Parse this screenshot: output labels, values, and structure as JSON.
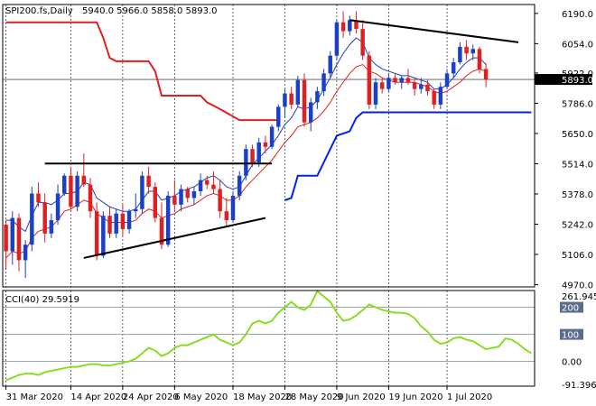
{
  "chart_data": {
    "type": "candlestick",
    "header": {
      "symbol": "SPI200.fs,Daily",
      "ohlc": "5940.0 5966.0 5858.0 5893.0"
    },
    "price_axis": {
      "ticks": [
        6190.0,
        6054.0,
        5922.0,
        5786.0,
        5650.0,
        5514.0,
        5378.0,
        5242.0,
        5106.0,
        4970.0
      ],
      "tick_labels": [
        "6190.0",
        "6054.0",
        "5922.0",
        "5786.0",
        "5650.0",
        "5514.0",
        "5378.0",
        "5242.0",
        "5106.0",
        "4970.0"
      ],
      "range": [
        4960,
        6230
      ],
      "last_price": 5893.0,
      "last_price_label": "5893.0"
    },
    "date_labels": [
      "31 Mar 2020",
      "14 Apr 2020",
      "24 Apr 2020",
      "6 May 2020",
      "18 May 2020",
      "28 May 2020",
      "9 Jun 2020",
      "19 Jun 2020",
      "1 Jul 2020"
    ],
    "colors": {
      "bull": "#1a3fc8",
      "bear": "#e02020",
      "ma_fast": "#e02020",
      "ma_slow": "#1a3fc8",
      "stop_high": "#e02020",
      "stop_low": "#0022ee",
      "cci": "#88dd22",
      "grid": "#000000"
    },
    "candles": [
      [
        5240,
        5260,
        5040,
        5120
      ],
      [
        5120,
        5300,
        5060,
        5270
      ],
      [
        5270,
        5290,
        5030,
        5080
      ],
      [
        5080,
        5170,
        5000,
        5150
      ],
      [
        5150,
        5410,
        5120,
        5380
      ],
      [
        5380,
        5430,
        5320,
        5340
      ],
      [
        5340,
        5380,
        5160,
        5200
      ],
      [
        5200,
        5290,
        5180,
        5260
      ],
      [
        5260,
        5420,
        5240,
        5380
      ],
      [
        5380,
        5470,
        5370,
        5460
      ],
      [
        5460,
        5500,
        5310,
        5320
      ],
      [
        5320,
        5480,
        5300,
        5460
      ],
      [
        5460,
        5560,
        5410,
        5420
      ],
      [
        5420,
        5450,
        5270,
        5300
      ],
      [
        5300,
        5340,
        5080,
        5100
      ],
      [
        5100,
        5300,
        5090,
        5280
      ],
      [
        5280,
        5320,
        5180,
        5200
      ],
      [
        5200,
        5310,
        5180,
        5290
      ],
      [
        5290,
        5330,
        5190,
        5220
      ],
      [
        5220,
        5310,
        5200,
        5300
      ],
      [
        5300,
        5380,
        5270,
        5310
      ],
      [
        5310,
        5480,
        5290,
        5460
      ],
      [
        5460,
        5500,
        5380,
        5410
      ],
      [
        5410,
        5430,
        5250,
        5270
      ],
      [
        5270,
        5340,
        5130,
        5150
      ],
      [
        5150,
        5390,
        5140,
        5370
      ],
      [
        5370,
        5440,
        5300,
        5330
      ],
      [
        5330,
        5420,
        5300,
        5400
      ],
      [
        5400,
        5410,
        5340,
        5360
      ],
      [
        5360,
        5410,
        5330,
        5390
      ],
      [
        5390,
        5470,
        5370,
        5440
      ],
      [
        5440,
        5460,
        5400,
        5420
      ],
      [
        5420,
        5480,
        5380,
        5400
      ],
      [
        5400,
        5440,
        5270,
        5300
      ],
      [
        5300,
        5360,
        5230,
        5260
      ],
      [
        5260,
        5390,
        5250,
        5370
      ],
      [
        5370,
        5480,
        5350,
        5460
      ],
      [
        5460,
        5600,
        5440,
        5580
      ],
      [
        5580,
        5600,
        5500,
        5520
      ],
      [
        5520,
        5630,
        5500,
        5610
      ],
      [
        5610,
        5640,
        5560,
        5590
      ],
      [
        5590,
        5690,
        5580,
        5680
      ],
      [
        5680,
        5780,
        5660,
        5770
      ],
      [
        5770,
        5850,
        5720,
        5830
      ],
      [
        5830,
        5860,
        5760,
        5780
      ],
      [
        5780,
        5910,
        5770,
        5890
      ],
      [
        5890,
        5920,
        5680,
        5700
      ],
      [
        5700,
        5810,
        5660,
        5790
      ],
      [
        5790,
        5860,
        5760,
        5840
      ],
      [
        5840,
        5940,
        5820,
        5920
      ],
      [
        5920,
        6020,
        5900,
        6000
      ],
      [
        6000,
        6160,
        5980,
        6150
      ],
      [
        6150,
        6200,
        6080,
        6110
      ],
      [
        6110,
        6180,
        6090,
        6160
      ],
      [
        6160,
        6200,
        6100,
        6120
      ],
      [
        6120,
        6160,
        5980,
        6000
      ],
      [
        6000,
        6020,
        5760,
        5780
      ],
      [
        5780,
        5900,
        5760,
        5880
      ],
      [
        5880,
        5900,
        5830,
        5850
      ],
      [
        5850,
        5920,
        5840,
        5900
      ],
      [
        5900,
        5920,
        5870,
        5880
      ],
      [
        5880,
        5910,
        5850,
        5900
      ],
      [
        5900,
        5940,
        5870,
        5880
      ],
      [
        5880,
        5900,
        5820,
        5850
      ],
      [
        5850,
        5900,
        5830,
        5870
      ],
      [
        5870,
        5890,
        5820,
        5840
      ],
      [
        5840,
        5850,
        5760,
        5780
      ],
      [
        5780,
        5880,
        5760,
        5860
      ],
      [
        5860,
        5940,
        5850,
        5920
      ],
      [
        5920,
        5990,
        5900,
        5970
      ],
      [
        5970,
        6060,
        5960,
        6040
      ],
      [
        6040,
        6070,
        5980,
        6010
      ],
      [
        6010,
        6050,
        5980,
        6030
      ],
      [
        6030,
        6040,
        5920,
        5940
      ],
      [
        5940,
        5966,
        5858,
        5893
      ]
    ],
    "ma_fast": [
      5090,
      5120,
      5110,
      5120,
      5180,
      5210,
      5220,
      5230,
      5260,
      5300,
      5310,
      5330,
      5350,
      5340,
      5290,
      5270,
      5250,
      5250,
      5250,
      5250,
      5260,
      5290,
      5310,
      5300,
      5270,
      5280,
      5290,
      5310,
      5320,
      5330,
      5350,
      5370,
      5380,
      5370,
      5350,
      5350,
      5370,
      5410,
      5440,
      5470,
      5500,
      5530,
      5570,
      5610,
      5640,
      5680,
      5690,
      5700,
      5720,
      5750,
      5790,
      5840,
      5880,
      5920,
      5950,
      5960,
      5930,
      5920,
      5900,
      5890,
      5880,
      5880,
      5880,
      5880,
      5870,
      5860,
      5840,
      5830,
      5840,
      5860,
      5880,
      5910,
      5930,
      5940,
      5930
    ],
    "ma_slow": [
      5260,
      5260,
      5230,
      5210,
      5280,
      5340,
      5340,
      5330,
      5350,
      5380,
      5380,
      5390,
      5430,
      5420,
      5360,
      5340,
      5320,
      5310,
      5300,
      5300,
      5310,
      5350,
      5390,
      5390,
      5350,
      5360,
      5370,
      5390,
      5400,
      5410,
      5430,
      5450,
      5460,
      5440,
      5410,
      5400,
      5410,
      5460,
      5510,
      5540,
      5570,
      5600,
      5640,
      5690,
      5720,
      5770,
      5760,
      5770,
      5800,
      5850,
      5900,
      5960,
      6010,
      6050,
      6080,
      6060,
      5990,
      5960,
      5940,
      5930,
      5920,
      5910,
      5910,
      5900,
      5890,
      5880,
      5850,
      5850,
      5870,
      5900,
      5940,
      5970,
      5990,
      5990,
      5960
    ],
    "stop_high": [
      [
        0,
        6150
      ],
      [
        14,
        6150
      ],
      [
        15,
        6080
      ],
      [
        16,
        5990
      ],
      [
        17,
        5975
      ],
      [
        22,
        5975
      ],
      [
        23,
        5930
      ],
      [
        24,
        5820
      ],
      [
        30,
        5820
      ],
      [
        31,
        5790
      ],
      [
        33,
        5760
      ],
      [
        36,
        5710
      ],
      [
        42,
        5710
      ]
    ],
    "stop_low": [
      [
        43,
        5350
      ],
      [
        44,
        5360
      ],
      [
        45,
        5460
      ],
      [
        48,
        5460
      ],
      [
        49,
        5520
      ],
      [
        51,
        5640
      ],
      [
        53,
        5660
      ],
      [
        54,
        5720
      ],
      [
        55,
        5745
      ],
      [
        81,
        5745
      ]
    ],
    "trendlines": [
      {
        "from": [
          6,
          5515
        ],
        "to": [
          41,
          5515
        ]
      },
      {
        "from": [
          12,
          5090
        ],
        "to": [
          40,
          5270
        ]
      },
      {
        "from": [
          53,
          6160
        ],
        "to": [
          79,
          6060
        ]
      }
    ],
    "cci": {
      "label": "CCI(40) 29.5919",
      "ticks": [
        200,
        100,
        0.0
      ],
      "tick_labels": [
        "200",
        "100",
        "0.00"
      ],
      "max_label": "261.9451",
      "min_label": "-91.3965",
      "range": [
        -91.3965,
        261.9451
      ],
      "values": [
        -70,
        -60,
        -50,
        -45,
        -45,
        -50,
        -40,
        -35,
        -30,
        -25,
        -20,
        -20,
        -15,
        -10,
        -10,
        -15,
        -15,
        -10,
        -5,
        0,
        10,
        30,
        50,
        40,
        20,
        30,
        50,
        60,
        60,
        70,
        80,
        90,
        100,
        80,
        70,
        60,
        70,
        100,
        140,
        150,
        140,
        150,
        180,
        200,
        220,
        200,
        190,
        210,
        260,
        240,
        220,
        180,
        150,
        155,
        170,
        190,
        210,
        200,
        190,
        185,
        180,
        180,
        175,
        160,
        130,
        110,
        80,
        65,
        70,
        85,
        90,
        80,
        75,
        60,
        45,
        50,
        55,
        85,
        80,
        65,
        45,
        30
      ]
    }
  }
}
